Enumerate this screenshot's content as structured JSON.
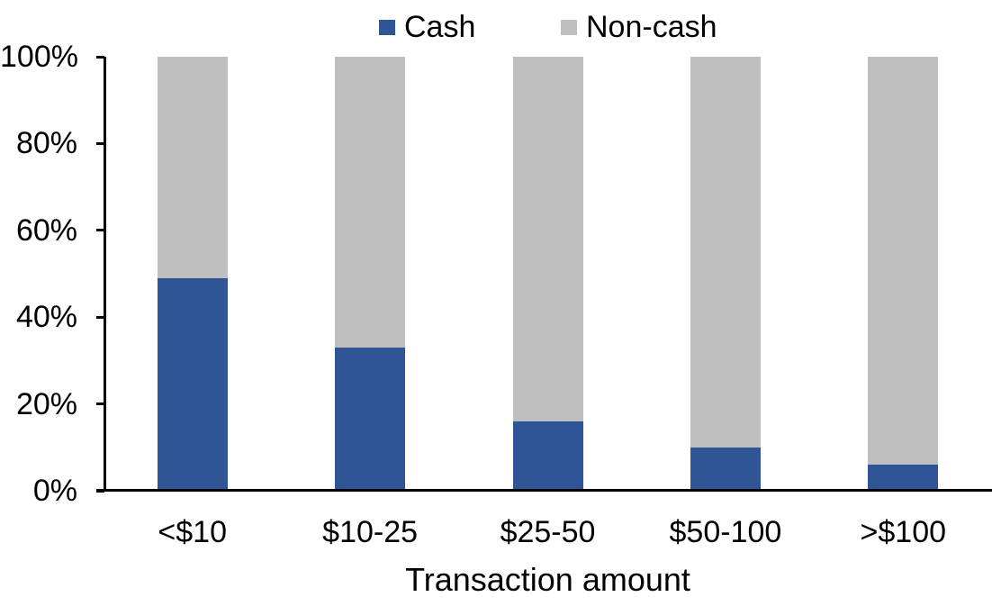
{
  "chart_data": {
    "type": "bar",
    "stacked": true,
    "percent_stacked": true,
    "title": "",
    "xlabel": "Transaction amount",
    "ylabel": "",
    "categories": [
      "<$10",
      "$10-25",
      "$25-50",
      "$50-100",
      ">$100"
    ],
    "series": [
      {
        "name": "Cash",
        "color": "#2F5597",
        "values": [
          49,
          33,
          16,
          10,
          6
        ]
      },
      {
        "name": "Non-cash",
        "color": "#BFBFBF",
        "values": [
          51,
          67,
          84,
          90,
          94
        ]
      }
    ],
    "ylim": [
      0,
      100
    ],
    "ytick_labels": [
      "0%",
      "20%",
      "40%",
      "60%",
      "80%",
      "100%"
    ],
    "ytick_values": [
      0,
      20,
      40,
      60,
      80,
      100
    ],
    "legend_position": "top",
    "grid": false,
    "axis_color": "#000000",
    "background_color": "#FFFFFF"
  }
}
